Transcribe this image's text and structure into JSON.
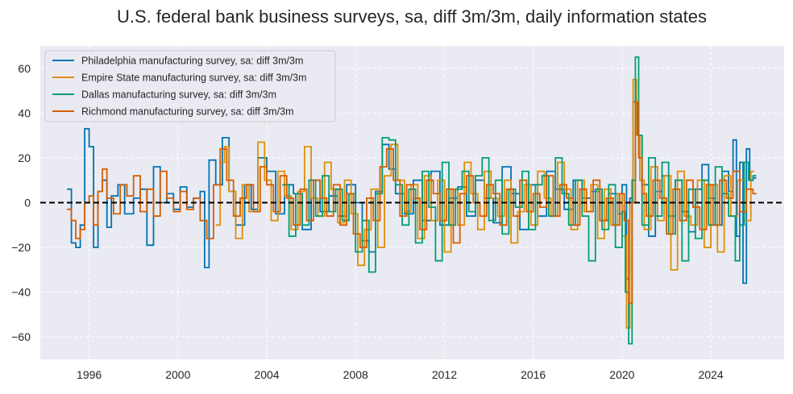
{
  "chart_data": {
    "type": "line",
    "title": "U.S. federal bank business surveys, sa, diff 3m/3m, daily information states",
    "xlabel": "",
    "ylabel": "",
    "xlim": [
      1993.8,
      2027.3
    ],
    "ylim": [
      -70,
      70
    ],
    "x_ticks": [
      1996,
      2000,
      2004,
      2008,
      2012,
      2016,
      2020,
      2024
    ],
    "x_tick_labels": [
      "1996",
      "2000",
      "2004",
      "2008",
      "2012",
      "2016",
      "2020",
      "2024"
    ],
    "y_ticks": [
      -60,
      -40,
      -20,
      0,
      20,
      40,
      60
    ],
    "y_tick_labels": [
      "−60",
      "−40",
      "−20",
      "0",
      "20",
      "40",
      "60"
    ],
    "grid": true,
    "zero_line": {
      "y": 0,
      "style": "dashed",
      "color": "#000000"
    },
    "legend_position": "top-left",
    "series": [
      {
        "name": "Philadelphia manufacturing survey, sa: diff 3m/3m",
        "color": "#0173b2",
        "x": [
          1995.0,
          1995.2,
          1995.4,
          1995.6,
          1995.8,
          1996.0,
          1996.2,
          1996.4,
          1996.6,
          1996.8,
          1997.0,
          1997.3,
          1997.6,
          1998.0,
          1998.3,
          1998.6,
          1998.9,
          1999.2,
          1999.5,
          1999.8,
          2000.1,
          2000.4,
          2000.7,
          2001.0,
          2001.2,
          2001.4,
          2001.7,
          2002.0,
          2002.3,
          2002.6,
          2003.0,
          2003.3,
          2003.6,
          2004.0,
          2004.4,
          2004.8,
          2005.2,
          2005.6,
          2006.0,
          2006.4,
          2006.8,
          2007.2,
          2007.6,
          2008.0,
          2008.3,
          2008.6,
          2008.9,
          2009.2,
          2009.5,
          2009.8,
          2010.2,
          2010.6,
          2011.0,
          2011.4,
          2011.8,
          2012.2,
          2012.6,
          2013.0,
          2013.4,
          2013.8,
          2014.2,
          2014.6,
          2015.0,
          2015.4,
          2015.8,
          2016.2,
          2016.6,
          2017.0,
          2017.4,
          2017.8,
          2018.2,
          2018.6,
          2019.0,
          2019.4,
          2019.8,
          2020.0,
          2020.2,
          2020.35,
          2020.5,
          2020.7,
          2020.9,
          2021.2,
          2021.5,
          2021.8,
          2022.1,
          2022.4,
          2022.7,
          2023.0,
          2023.3,
          2023.6,
          2023.9,
          2024.2,
          2024.5,
          2024.8,
          2025.0,
          2025.15,
          2025.3,
          2025.45,
          2025.6,
          2025.75,
          2025.9
        ],
        "y": [
          6,
          -18,
          -20,
          -10,
          33,
          25,
          -20,
          5,
          10,
          -11,
          3,
          8,
          -5,
          2,
          6,
          -19,
          16,
          0,
          4,
          -3,
          7,
          -2,
          2,
          5,
          -29,
          19,
          8,
          29,
          5,
          -10,
          8,
          -3,
          20,
          14,
          -5,
          8,
          4,
          -12,
          10,
          -4,
          3,
          -6,
          8,
          0,
          -17,
          -22,
          5,
          26,
          15,
          4,
          -5,
          10,
          -8,
          14,
          -10,
          2,
          7,
          -6,
          10,
          2,
          -9,
          16,
          4,
          -12,
          8,
          -6,
          14,
          6,
          -3,
          10,
          2,
          5,
          -8,
          4,
          -5,
          8,
          -34,
          2,
          45,
          30,
          8,
          -15,
          5,
          12,
          -6,
          10,
          -4,
          -13,
          6,
          17,
          2,
          -10,
          14,
          5,
          28,
          -15,
          18,
          -36,
          24,
          10,
          11
        ]
      },
      {
        "name": "Empire State manufacturing survey, sa: diff 3m/3m",
        "color": "#de8f05",
        "x": [
          2001.7,
          2001.9,
          2002.1,
          2002.3,
          2002.6,
          2002.9,
          2003.2,
          2003.6,
          2003.9,
          2004.2,
          2004.5,
          2004.8,
          2005.1,
          2005.4,
          2005.7,
          2006.0,
          2006.3,
          2006.6,
          2006.9,
          2007.2,
          2007.5,
          2007.8,
          2008.1,
          2008.4,
          2008.7,
          2009.0,
          2009.3,
          2009.6,
          2009.9,
          2010.2,
          2010.5,
          2010.8,
          2011.1,
          2011.4,
          2011.7,
          2012.0,
          2012.3,
          2012.6,
          2012.9,
          2013.2,
          2013.5,
          2013.8,
          2014.1,
          2014.4,
          2014.7,
          2015.0,
          2015.3,
          2015.6,
          2015.9,
          2016.2,
          2016.5,
          2016.8,
          2017.1,
          2017.4,
          2017.7,
          2018.0,
          2018.3,
          2018.6,
          2018.9,
          2019.2,
          2019.5,
          2019.8,
          2020.0,
          2020.2,
          2020.35,
          2020.5,
          2020.65,
          2020.8,
          2021.0,
          2021.3,
          2021.6,
          2021.9,
          2022.2,
          2022.5,
          2022.8,
          2023.1,
          2023.4,
          2023.7,
          2024.0,
          2024.3,
          2024.6,
          2024.9,
          2025.2,
          2025.5,
          2025.8
        ],
        "y": [
          -10,
          18,
          25,
          5,
          -16,
          8,
          -4,
          27,
          10,
          -8,
          14,
          3,
          -12,
          5,
          25,
          2,
          -6,
          18,
          6,
          -9,
          10,
          -5,
          -28,
          -12,
          6,
          -20,
          12,
          26,
          10,
          -4,
          8,
          -16,
          12,
          -8,
          10,
          -22,
          6,
          -10,
          18,
          4,
          -12,
          14,
          2,
          -6,
          10,
          -18,
          -4,
          8,
          -10,
          14,
          2,
          -6,
          18,
          6,
          -12,
          10,
          -4,
          8,
          -16,
          6,
          -10,
          4,
          -15,
          -56,
          0,
          55,
          30,
          10,
          -12,
          16,
          -8,
          12,
          -30,
          14,
          -6,
          -10,
          10,
          -20,
          8,
          -22,
          12,
          -6,
          10,
          -8,
          14
        ]
      },
      {
        "name": "Dallas manufacturing survey, sa: diff 3m/3m",
        "color": "#029e73",
        "x": [
          2004.7,
          2005.0,
          2005.3,
          2005.6,
          2005.9,
          2006.2,
          2006.5,
          2006.8,
          2007.1,
          2007.4,
          2007.7,
          2008.0,
          2008.3,
          2008.6,
          2008.9,
          2009.2,
          2009.5,
          2009.8,
          2010.1,
          2010.4,
          2010.7,
          2011.0,
          2011.3,
          2011.6,
          2011.9,
          2012.2,
          2012.5,
          2012.8,
          2013.1,
          2013.4,
          2013.7,
          2014.0,
          2014.3,
          2014.6,
          2014.9,
          2015.2,
          2015.5,
          2015.8,
          2016.1,
          2016.4,
          2016.7,
          2017.0,
          2017.3,
          2017.6,
          2017.9,
          2018.2,
          2018.5,
          2018.8,
          2019.1,
          2019.4,
          2019.7,
          2020.0,
          2020.15,
          2020.3,
          2020.45,
          2020.6,
          2020.75,
          2020.9,
          2021.2,
          2021.5,
          2021.8,
          2022.1,
          2022.4,
          2022.7,
          2023.0,
          2023.3,
          2023.6,
          2023.9,
          2024.2,
          2024.5,
          2024.8,
          2025.1,
          2025.3,
          2025.5,
          2025.7,
          2025.9
        ],
        "y": [
          8,
          -15,
          4,
          -10,
          10,
          -6,
          12,
          -4,
          6,
          -8,
          4,
          -22,
          -8,
          -31,
          4,
          29,
          28,
          8,
          -10,
          6,
          -18,
          14,
          -2,
          -26,
          18,
          -10,
          6,
          14,
          -4,
          12,
          20,
          -8,
          10,
          -14,
          6,
          -2,
          14,
          -12,
          8,
          12,
          -6,
          20,
          4,
          -10,
          10,
          -6,
          -26,
          6,
          -12,
          8,
          -20,
          -4,
          -40,
          -63,
          10,
          65,
          30,
          -10,
          20,
          -6,
          18,
          -14,
          10,
          -26,
          6,
          -16,
          10,
          -10,
          16,
          4,
          -6,
          -26,
          -10,
          18,
          10,
          12
        ]
      },
      {
        "name": "Richmond manufacturing survey, sa: diff 3m/3m",
        "color": "#d55e00",
        "x": [
          1995.0,
          1995.2,
          1995.4,
          1995.6,
          1995.8,
          1996.0,
          1996.2,
          1996.4,
          1996.6,
          1996.8,
          1997.1,
          1997.4,
          1997.7,
          1998.0,
          1998.3,
          1998.6,
          1998.9,
          1999.2,
          1999.5,
          1999.8,
          2000.1,
          2000.4,
          2000.7,
          2001.0,
          2001.3,
          2001.6,
          2001.9,
          2002.2,
          2002.5,
          2002.8,
          2003.1,
          2003.4,
          2003.7,
          2004.0,
          2004.3,
          2004.6,
          2004.9,
          2005.2,
          2005.5,
          2005.8,
          2006.1,
          2006.4,
          2006.7,
          2007.0,
          2007.3,
          2007.6,
          2007.9,
          2008.2,
          2008.5,
          2008.8,
          2009.1,
          2009.4,
          2009.7,
          2010.0,
          2010.3,
          2010.6,
          2010.9,
          2011.2,
          2011.5,
          2011.8,
          2012.1,
          2012.4,
          2012.7,
          2013.0,
          2013.3,
          2013.6,
          2013.9,
          2014.2,
          2014.5,
          2014.8,
          2015.1,
          2015.4,
          2015.7,
          2016.0,
          2016.3,
          2016.6,
          2016.9,
          2017.2,
          2017.5,
          2017.8,
          2018.1,
          2018.4,
          2018.7,
          2019.0,
          2019.3,
          2019.6,
          2019.9,
          2020.1,
          2020.3,
          2020.45,
          2020.6,
          2020.75,
          2020.9,
          2021.1,
          2021.4,
          2021.7,
          2022.0,
          2022.3,
          2022.6,
          2022.9,
          2023.2,
          2023.5,
          2023.8,
          2024.1,
          2024.4,
          2024.7,
          2025.0,
          2025.3,
          2025.6,
          2025.9
        ],
        "y": [
          -3,
          -8,
          -16,
          -12,
          0,
          3,
          -10,
          5,
          15,
          2,
          -5,
          8,
          3,
          12,
          -4,
          6,
          -6,
          14,
          2,
          -4,
          5,
          -3,
          2,
          -8,
          -16,
          8,
          24,
          10,
          -6,
          2,
          8,
          -4,
          16,
          8,
          -4,
          12,
          2,
          -10,
          6,
          -8,
          10,
          2,
          -6,
          8,
          -10,
          4,
          -14,
          -20,
          2,
          -8,
          16,
          24,
          10,
          -6,
          8,
          2,
          -12,
          10,
          4,
          -8,
          6,
          -18,
          4,
          12,
          0,
          -6,
          8,
          4,
          -10,
          6,
          -6,
          10,
          -4,
          4,
          -2,
          12,
          -6,
          8,
          2,
          -10,
          6,
          -4,
          10,
          -8,
          2,
          -10,
          4,
          -8,
          -45,
          0,
          45,
          20,
          4,
          -6,
          10,
          2,
          -14,
          6,
          -8,
          10,
          -2,
          -12,
          8,
          -10,
          10,
          2,
          14,
          -4,
          6,
          4
        ]
      }
    ]
  }
}
